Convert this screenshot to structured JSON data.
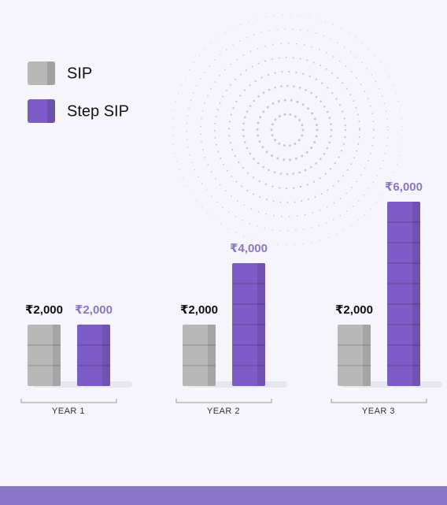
{
  "chart_data": {
    "type": "bar",
    "categories": [
      "YEAR 1",
      "YEAR 2",
      "YEAR 3"
    ],
    "series": [
      {
        "name": "SIP",
        "color": "#b8b8b8",
        "values": [
          2000,
          2000,
          2000
        ],
        "value_labels": [
          "₹2,000",
          "₹2,000",
          "₹2,000"
        ]
      },
      {
        "name": "Step SIP",
        "color": "#7c5cc6",
        "values": [
          2000,
          4000,
          6000
        ],
        "value_labels": [
          "₹2,000",
          "₹4,000",
          "₹6,000"
        ]
      }
    ]
  }
}
